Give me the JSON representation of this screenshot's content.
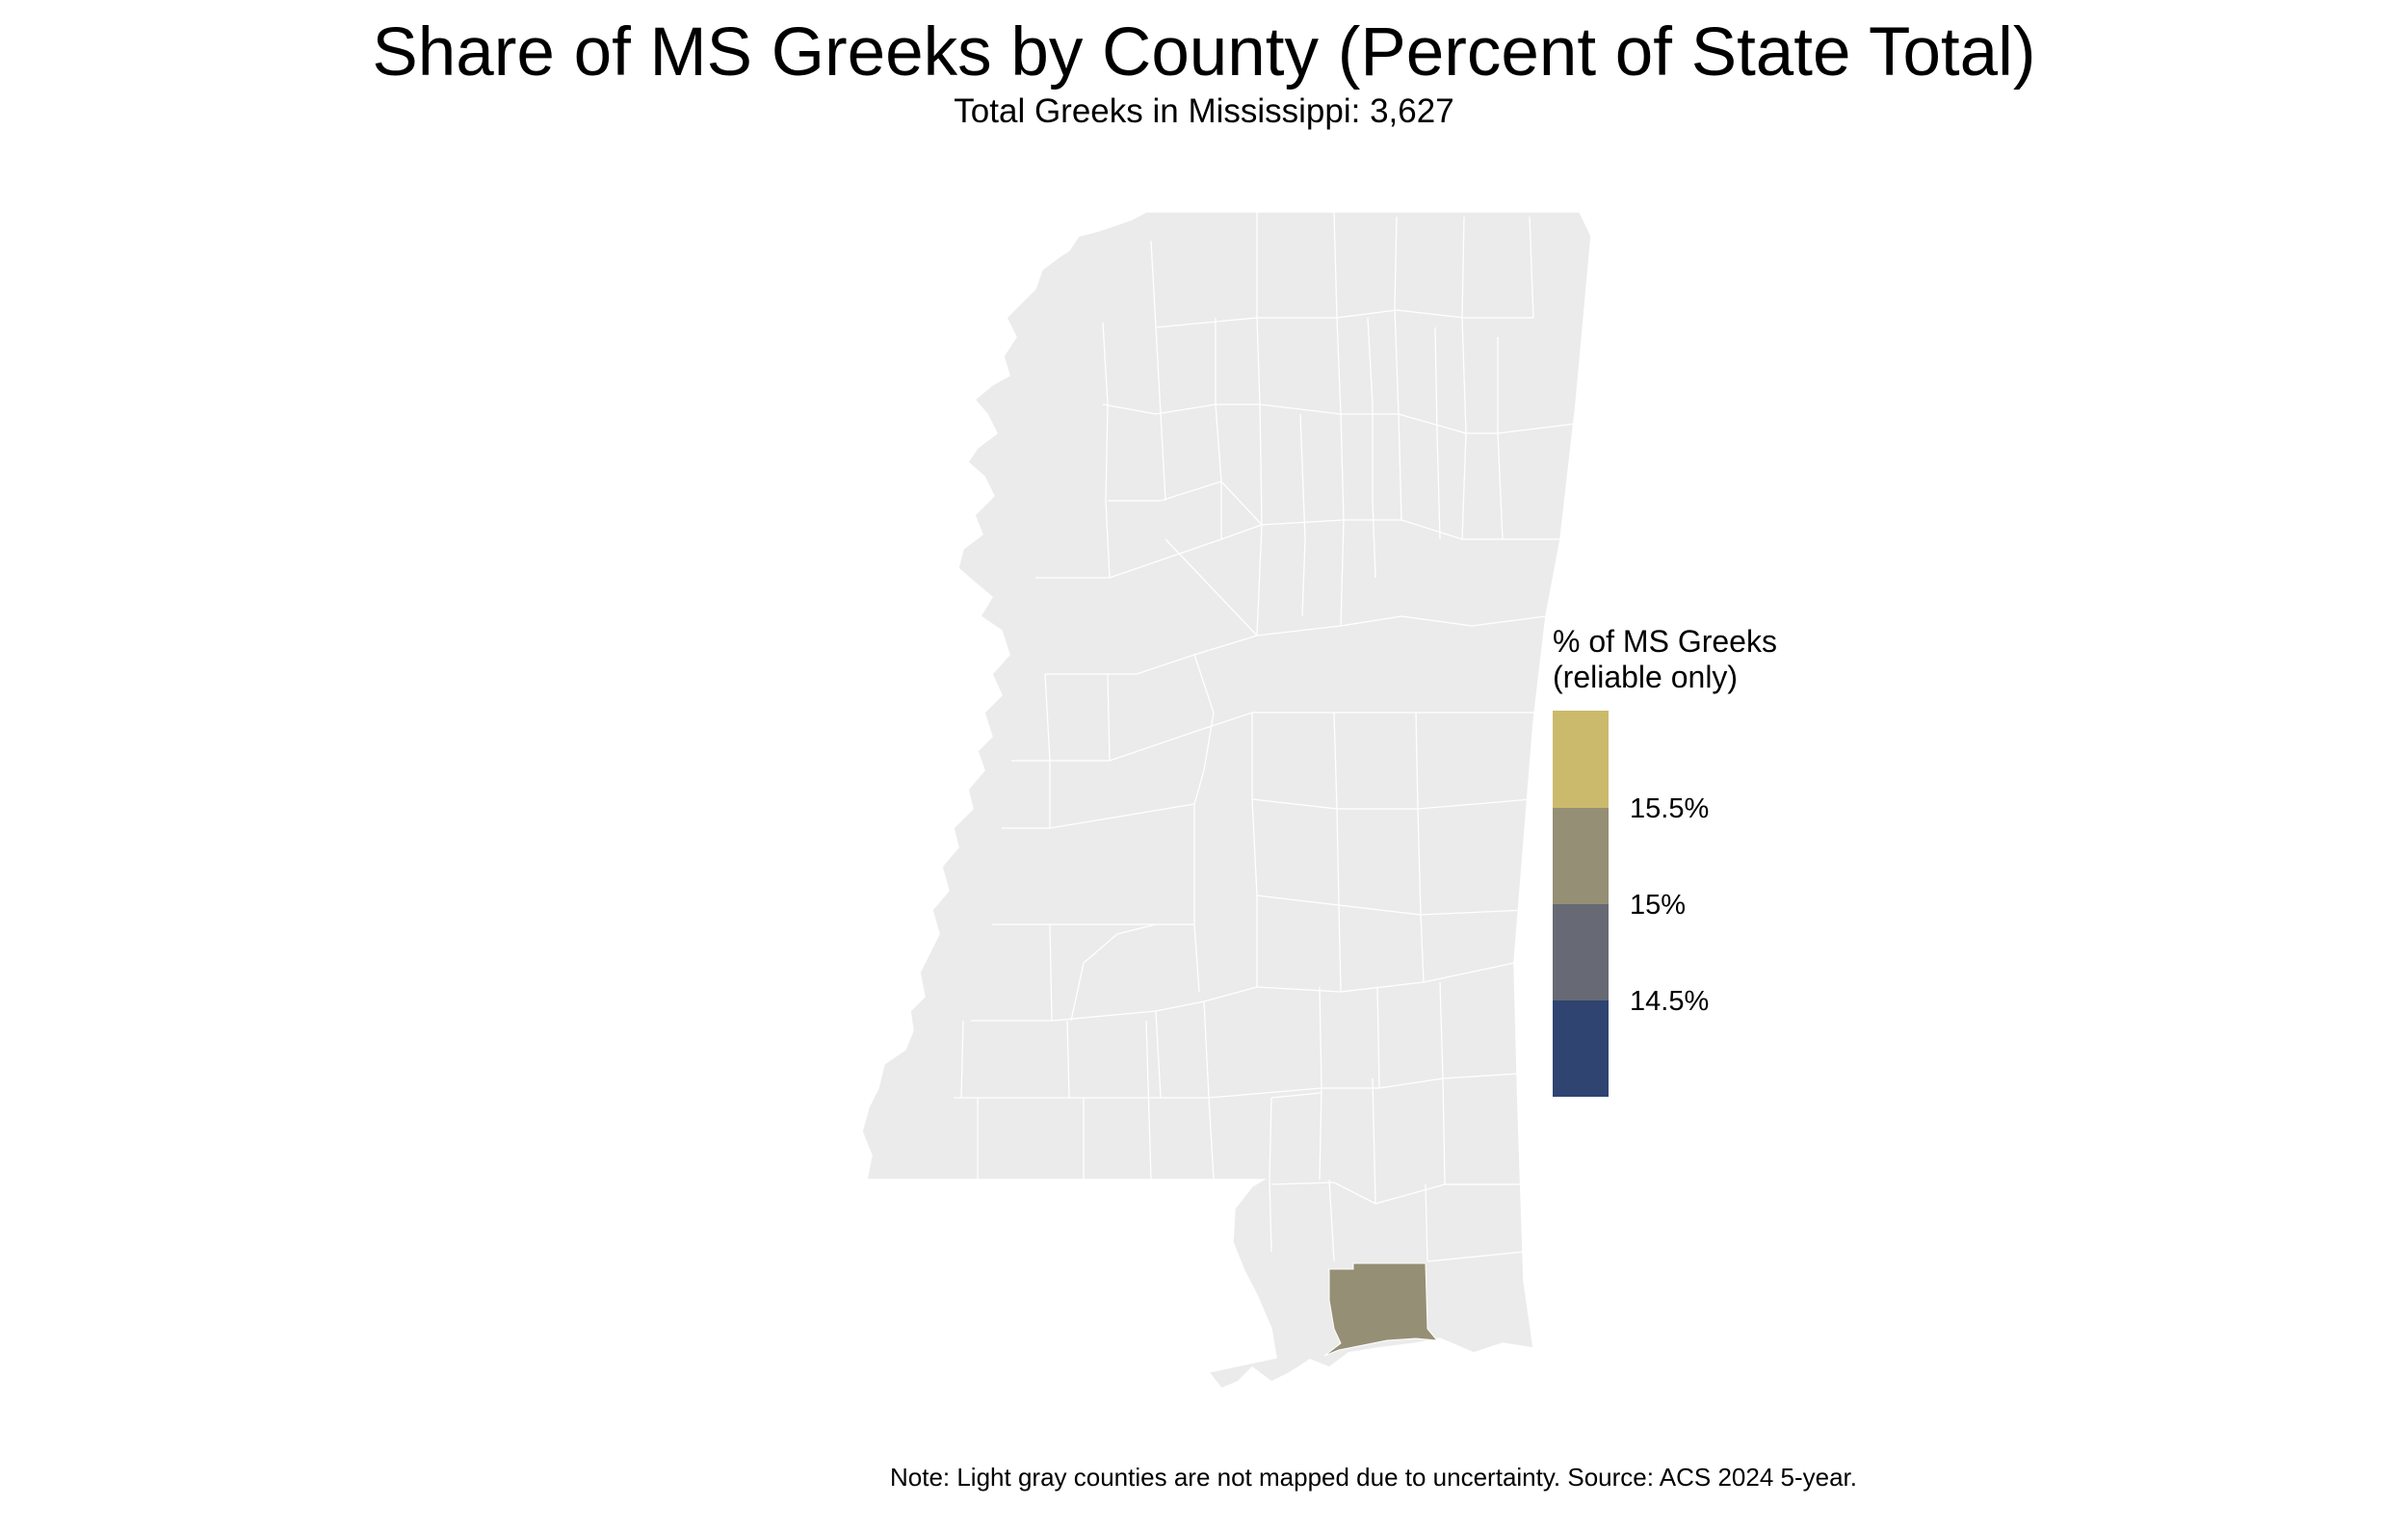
{
  "title": "Share of MS Greeks by County (Percent of State Total)",
  "subtitle": "Total Greeks in Mississippi: 3,627",
  "caption": "Note: Light gray counties are not mapped due to uncertainty. Source: ACS 2024 5-year.",
  "map": {
    "state": "Mississippi",
    "default_fill": "#ebebeb",
    "border_color": "#ffffff",
    "highlighted_counties": [
      {
        "share_bin": "15% – 15.5%",
        "fill": "#958f75"
      }
    ]
  },
  "legend": {
    "title_line1": "% of MS Greeks",
    "title_line2": "(reliable only)",
    "bins": [
      {
        "fill": "#ccba6c"
      },
      {
        "fill": "#958f75"
      },
      {
        "fill": "#676a74"
      },
      {
        "fill": "#2f4471"
      }
    ],
    "labels": [
      "15.5%",
      "15%",
      "14.5%"
    ]
  }
}
